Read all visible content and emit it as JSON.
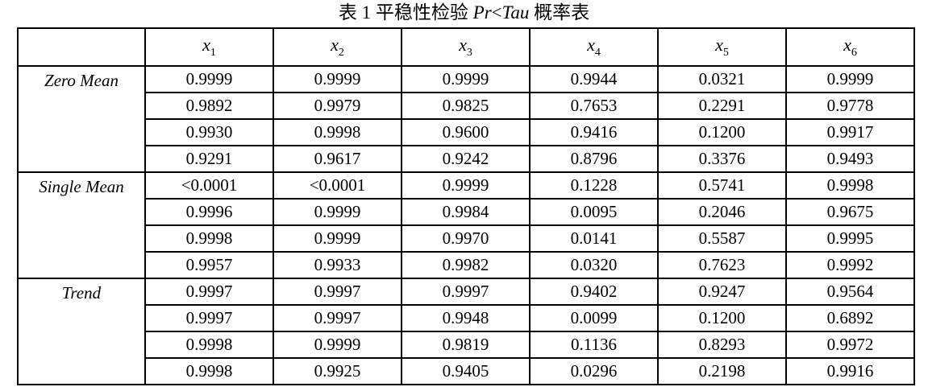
{
  "title": {
    "prefix": "表 1  平稳性检验 ",
    "pr": "Pr",
    "lt": "<",
    "tau": "Tau",
    "suffix": " 概率表"
  },
  "table": {
    "columns": [
      {
        "base": "x",
        "sub": "1"
      },
      {
        "base": "x",
        "sub": "2"
      },
      {
        "base": "x",
        "sub": "3"
      },
      {
        "base": "x",
        "sub": "4"
      },
      {
        "base": "x",
        "sub": "5"
      },
      {
        "base": "x",
        "sub": "6"
      }
    ],
    "groups": [
      {
        "label": "Zero Mean",
        "rows": [
          [
            "0.9999",
            "0.9999",
            "0.9999",
            "0.9944",
            "0.0321",
            "0.9999"
          ],
          [
            "0.9892",
            "0.9979",
            "0.9825",
            "0.7653",
            "0.2291",
            "0.9778"
          ],
          [
            "0.9930",
            "0.9998",
            "0.9600",
            "0.9416",
            "0.1200",
            "0.9917"
          ],
          [
            "0.9291",
            "0.9617",
            "0.9242",
            "0.8796",
            "0.3376",
            "0.9493"
          ]
        ]
      },
      {
        "label": "Single Mean",
        "rows": [
          [
            "<0.0001",
            "<0.0001",
            "0.9999",
            "0.1228",
            "0.5741",
            "0.9998"
          ],
          [
            "0.9996",
            "0.9999",
            "0.9984",
            "0.0095",
            "0.2046",
            "0.9675"
          ],
          [
            "0.9998",
            "0.9999",
            "0.9970",
            "0.0141",
            "0.5587",
            "0.9995"
          ],
          [
            "0.9957",
            "0.9933",
            "0.9982",
            "0.0320",
            "0.7623",
            "0.9992"
          ]
        ]
      },
      {
        "label": "Trend",
        "rows": [
          [
            "0.9997",
            "0.9997",
            "0.9997",
            "0.9402",
            "0.9247",
            "0.9564"
          ],
          [
            "0.9997",
            "0.9997",
            "0.9948",
            "0.0099",
            "0.1200",
            "0.6892"
          ],
          [
            "0.9998",
            "0.9999",
            "0.9819",
            "0.1136",
            "0.8293",
            "0.9972"
          ],
          [
            "0.9998",
            "0.9925",
            "0.9405",
            "0.0296",
            "0.2198",
            "0.9916"
          ]
        ]
      }
    ]
  }
}
